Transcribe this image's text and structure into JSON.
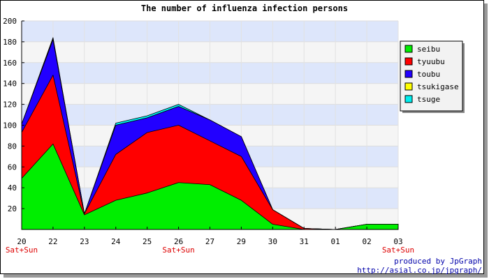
{
  "chart_data": {
    "type": "area",
    "stacked": true,
    "title": "The number of influenza infection persons",
    "x_categories": [
      "20",
      "22",
      "23",
      "24",
      "25",
      "26",
      "27",
      "29",
      "30",
      "31",
      "01",
      "02",
      "03"
    ],
    "weekend_marks": [
      {
        "category": "20",
        "label": "Sat+Sun"
      },
      {
        "category": "26",
        "label": "Sat+Sun"
      },
      {
        "category": "03",
        "label": "Sat+Sun"
      }
    ],
    "ylim": [
      0,
      200
    ],
    "y_ticks": [
      20,
      40,
      60,
      80,
      100,
      120,
      140,
      160,
      180,
      200
    ],
    "grid": true,
    "legend_position": "top-right",
    "series": [
      {
        "name": "seibu",
        "color": "#00ee00",
        "values": [
          49,
          82,
          14,
          28,
          35,
          45,
          43,
          28,
          5,
          0,
          0,
          5,
          5
        ]
      },
      {
        "name": "tyuubu",
        "color": "#ff0000",
        "values": [
          44,
          66,
          1,
          44,
          58,
          55,
          42,
          42,
          14,
          1,
          0,
          0,
          0
        ]
      },
      {
        "name": "toubu",
        "color": "#2200ff",
        "values": [
          8,
          34,
          0,
          28,
          14,
          18,
          20,
          19,
          0,
          0,
          0,
          0,
          0
        ]
      },
      {
        "name": "tsukigase",
        "color": "#ffff00",
        "values": [
          0,
          1,
          0,
          0,
          0,
          0,
          0,
          0,
          0,
          0,
          0,
          0,
          0
        ]
      },
      {
        "name": "tsuge",
        "color": "#00eeee",
        "values": [
          0,
          1,
          0,
          2,
          2,
          2,
          0,
          0,
          0,
          0,
          0,
          0,
          0
        ]
      }
    ]
  },
  "footer": {
    "line1": "produced by JpGraph",
    "line2": "http://asial.co.jp/jpgraph/"
  }
}
